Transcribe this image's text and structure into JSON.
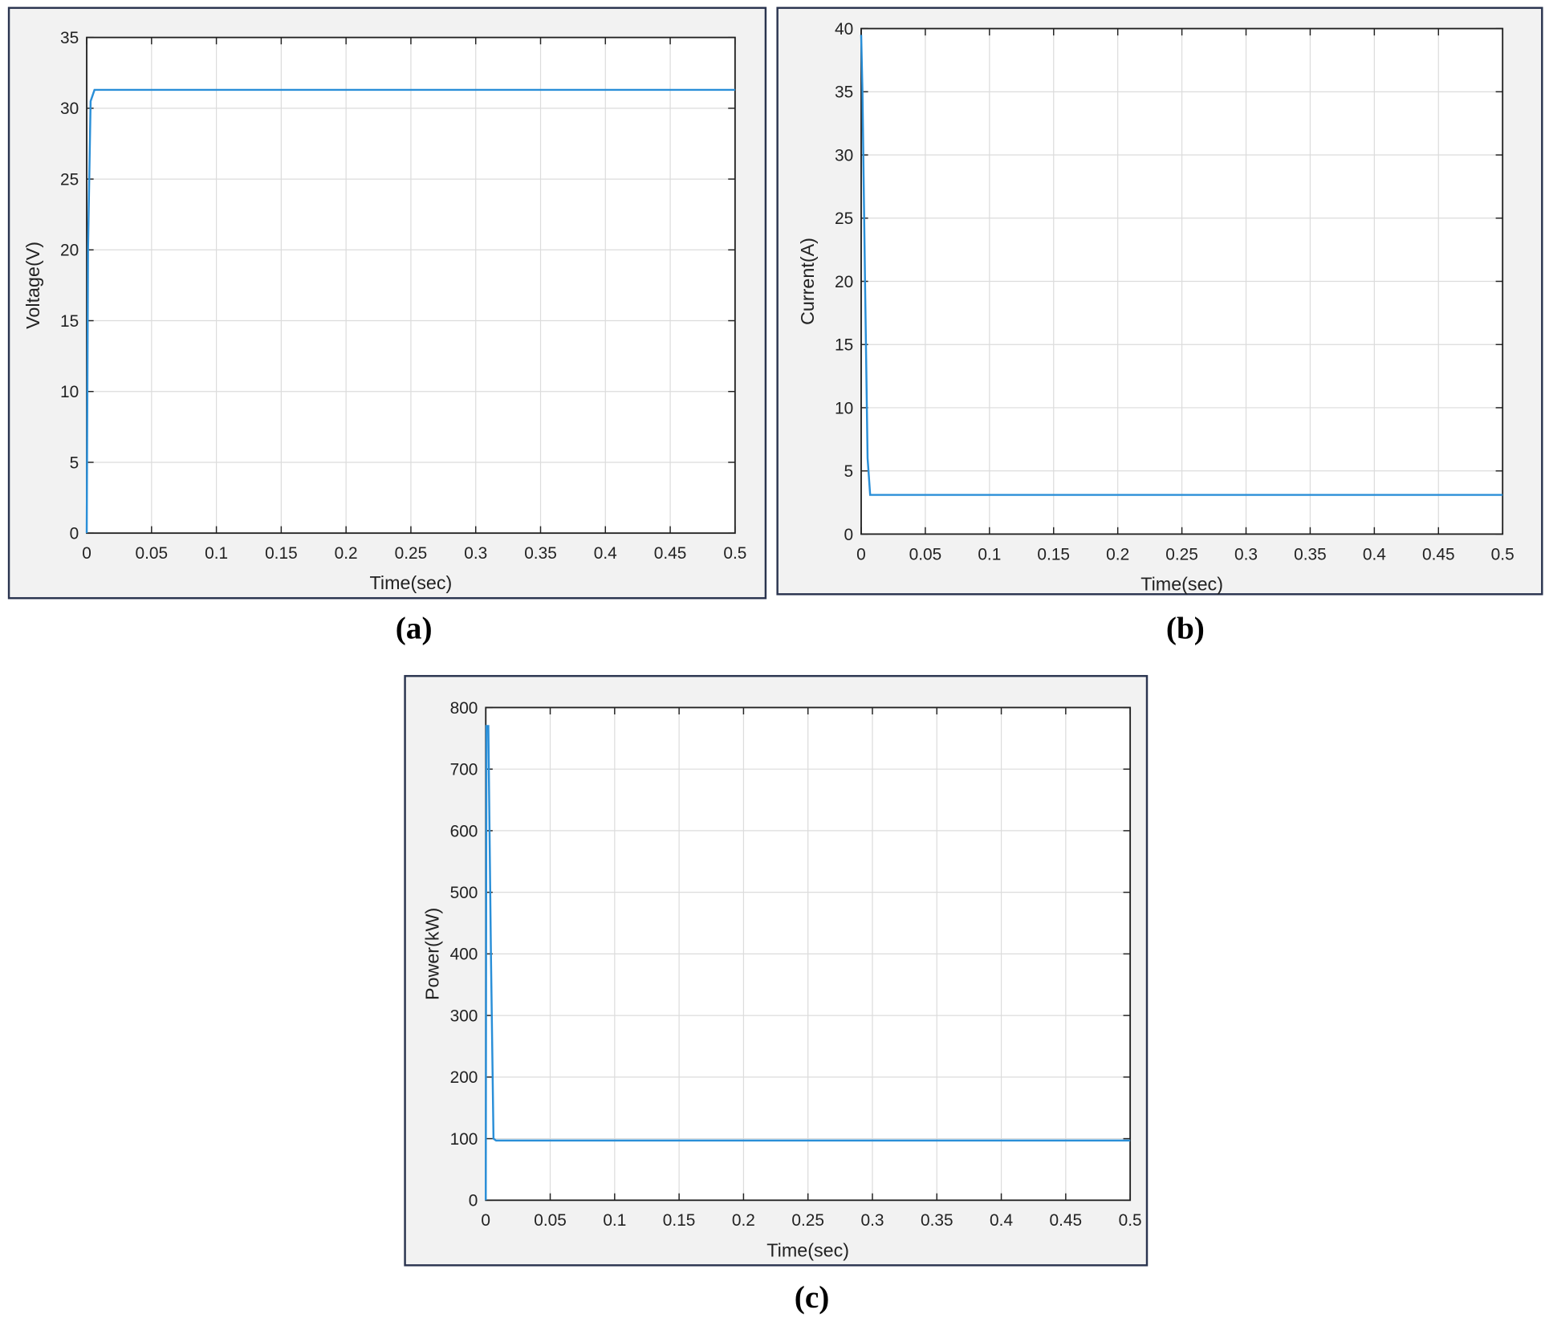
{
  "chart_data": [
    {
      "type": "line",
      "caption": "(a)",
      "xlabel": "Time(sec)",
      "ylabel": "Voltage(V)",
      "x": [
        0,
        0.001,
        0.003,
        0.006,
        0.5
      ],
      "values": [
        0,
        20,
        30.5,
        31.3,
        31.3
      ],
      "color": "#2a8fd8",
      "xlim": [
        0,
        0.5
      ],
      "ylim": [
        0,
        35
      ],
      "xticks": [
        0,
        0.05,
        0.1,
        0.15,
        0.2,
        0.25,
        0.3,
        0.35,
        0.4,
        0.45,
        0.5
      ],
      "yticks": [
        0,
        5,
        10,
        15,
        20,
        25,
        30,
        35
      ],
      "grid": true
    },
    {
      "type": "line",
      "caption": "(b)",
      "xlabel": "Time(sec)",
      "ylabel": "Current(A)",
      "x": [
        0,
        0.001,
        0.003,
        0.005,
        0.007,
        0.5
      ],
      "values": [
        39.5,
        35,
        20,
        6,
        3.1,
        3.1
      ],
      "color": "#2a8fd8",
      "xlim": [
        0,
        0.5
      ],
      "ylim": [
        0,
        40
      ],
      "xticks": [
        0,
        0.05,
        0.1,
        0.15,
        0.2,
        0.25,
        0.3,
        0.35,
        0.4,
        0.45,
        0.5
      ],
      "yticks": [
        0,
        5,
        10,
        15,
        20,
        25,
        30,
        35,
        40
      ],
      "grid": true
    },
    {
      "type": "line",
      "caption": "(c)",
      "xlabel": "Time(sec)",
      "ylabel": "Power(kW)",
      "x": [
        0,
        0.0005,
        0.002,
        0.004,
        0.006,
        0.008,
        0.5
      ],
      "values": [
        0,
        770,
        770,
        400,
        100,
        97,
        97
      ],
      "color": "#2a8fd8",
      "xlim": [
        0,
        0.5
      ],
      "ylim": [
        0,
        800
      ],
      "xticks": [
        0,
        0.05,
        0.1,
        0.15,
        0.2,
        0.25,
        0.3,
        0.35,
        0.4,
        0.45,
        0.5
      ],
      "yticks": [
        0,
        100,
        200,
        300,
        400,
        500,
        600,
        700,
        800
      ],
      "grid": true
    }
  ]
}
